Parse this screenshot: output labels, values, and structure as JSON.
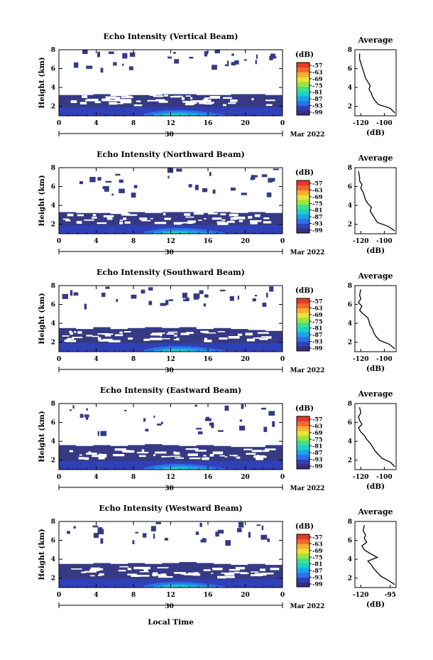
{
  "figure": {
    "xlabel": "Local Time",
    "date_label": "Mar 2022",
    "day_label": "30"
  },
  "colorbar": {
    "unit_label": "(dB)",
    "ticks": [
      "-57",
      "-63",
      "-69",
      "-75",
      "-81",
      "-87",
      "-93",
      "-99"
    ],
    "colors": [
      "#3a2d7c",
      "#3040b8",
      "#2f6fe8",
      "#19a6e8",
      "#1ed0c8",
      "#3fe08c",
      "#9ae43e",
      "#e6e43a",
      "#f8b030",
      "#f46a2c",
      "#e43a2a"
    ]
  },
  "panels": [
    {
      "title": "Echo Intensity (Vertical Beam)",
      "ylabel": "Height (km)",
      "avg_title": "Average",
      "avg_xlabel": "(dB)",
      "avg_xticks": [
        "-120",
        "-100"
      ]
    },
    {
      "title": "Echo Intensity (Northward Beam)",
      "ylabel": "Height (km)",
      "avg_title": "Average",
      "avg_xlabel": "(dB)",
      "avg_xticks": [
        "-120",
        "-100"
      ]
    },
    {
      "title": "Echo Intensity (Southward Beam)",
      "ylabel": "Height (km)",
      "avg_title": "Average",
      "avg_xlabel": "(dB)",
      "avg_xticks": [
        "-120",
        "-100"
      ]
    },
    {
      "title": "Echo Intensity (Eastward Beam)",
      "ylabel": "Height (km)",
      "avg_title": "Average",
      "avg_xlabel": "(dB)",
      "avg_xticks": [
        "-120",
        "-100"
      ]
    },
    {
      "title": "Echo Intensity (Westward Beam)",
      "ylabel": "Height (km)",
      "avg_title": "Average",
      "avg_xlabel": "(dB)",
      "avg_xticks": [
        "-120",
        "-95"
      ]
    }
  ],
  "chart_data": [
    {
      "type": "heatmap",
      "title": "Echo Intensity (Vertical Beam)",
      "xlabel": "",
      "ylabel": "Height (km)",
      "xlim": [
        0,
        24
      ],
      "ylim": [
        1,
        8
      ],
      "xticks": [
        "0",
        "4",
        "8",
        "12",
        "16",
        "20",
        "0"
      ],
      "yticks": [
        "2",
        "4",
        "6",
        "8"
      ],
      "zlabel": "(dB)",
      "zlim": [
        -99,
        -57
      ],
      "grid": false,
      "dense_layer_top_km": [
        3.2,
        3.2,
        3.3,
        3.1,
        3.2,
        3.2,
        3.3,
        3.3,
        3.2,
        3.2,
        3.3,
        3.3,
        3.2
      ],
      "scatter_echo_range_km": [
        6.0,
        8.0
      ]
    },
    {
      "type": "line",
      "title": "Average",
      "xlabel": "(dB)",
      "ylabel": "",
      "xlim": [
        -125,
        -90
      ],
      "ylim": [
        1,
        8
      ],
      "xticks": [
        "-120",
        "-100"
      ],
      "yticks": [
        "2",
        "4",
        "6",
        "8"
      ],
      "x": [
        -91,
        -95,
        -105,
        -108,
        -110,
        -111,
        -113,
        -112,
        -114,
        -116,
        -117,
        -118,
        -119,
        -120,
        -121,
        -121
      ],
      "y": [
        1.3,
        1.8,
        2.2,
        2.6,
        3.0,
        3.4,
        3.8,
        4.2,
        4.6,
        5.0,
        5.4,
        5.8,
        6.2,
        6.6,
        7.0,
        7.6
      ]
    },
    {
      "type": "heatmap",
      "title": "Echo Intensity (Northward Beam)",
      "xlabel": "",
      "ylabel": "Height (km)",
      "xlim": [
        0,
        24
      ],
      "ylim": [
        1,
        8
      ],
      "xticks": [
        "0",
        "4",
        "8",
        "12",
        "16",
        "20",
        "0"
      ],
      "yticks": [
        "2",
        "4",
        "6",
        "8"
      ],
      "zlabel": "(dB)",
      "zlim": [
        -99,
        -57
      ],
      "grid": false,
      "dense_layer_top_km": [
        3.3,
        3.2,
        3.2,
        3.1,
        3.3,
        3.2,
        3.3,
        3.3,
        3.2,
        3.3,
        3.2,
        3.3,
        3.2
      ],
      "scatter_echo_range_km": [
        5.0,
        8.0
      ]
    },
    {
      "type": "line",
      "title": "Average",
      "xlabel": "(dB)",
      "ylabel": "",
      "xlim": [
        -125,
        -90
      ],
      "ylim": [
        1,
        8
      ],
      "xticks": [
        "-120",
        "-100"
      ],
      "yticks": [
        "2",
        "4",
        "6",
        "8"
      ],
      "x": [
        -91,
        -97,
        -106,
        -108,
        -110,
        -112,
        -111,
        -114,
        -116,
        -117,
        -118,
        -120,
        -119,
        -121,
        -121,
        -122
      ],
      "y": [
        1.3,
        1.8,
        2.2,
        2.6,
        3.0,
        3.4,
        3.8,
        4.2,
        4.6,
        5.0,
        5.4,
        5.8,
        6.2,
        6.6,
        7.0,
        7.6
      ]
    },
    {
      "type": "heatmap",
      "title": "Echo Intensity (Southward Beam)",
      "xlabel": "",
      "ylabel": "Height (km)",
      "xlim": [
        0,
        24
      ],
      "ylim": [
        1,
        8
      ],
      "xticks": [
        "0",
        "4",
        "8",
        "12",
        "16",
        "20",
        "0"
      ],
      "yticks": [
        "2",
        "4",
        "6",
        "8"
      ],
      "zlabel": "(dB)",
      "zlim": [
        -99,
        -57
      ],
      "grid": false,
      "dense_layer_top_km": [
        3.5,
        3.4,
        3.6,
        3.4,
        3.5,
        3.6,
        3.5,
        3.6,
        3.4,
        3.5,
        3.4,
        3.3,
        3.2
      ],
      "scatter_echo_range_km": [
        6.0,
        8.0
      ]
    },
    {
      "type": "line",
      "title": "Average",
      "xlabel": "(dB)",
      "ylabel": "",
      "xlim": [
        -125,
        -90
      ],
      "ylim": [
        1,
        8
      ],
      "xticks": [
        "-120",
        "-100"
      ],
      "yticks": [
        "2",
        "4",
        "6",
        "8"
      ],
      "x": [
        -91,
        -96,
        -104,
        -107,
        -109,
        -110,
        -112,
        -113,
        -114,
        -118,
        -121,
        -119,
        -122,
        -120,
        -121,
        -120
      ],
      "y": [
        1.3,
        1.8,
        2.2,
        2.6,
        3.0,
        3.4,
        3.8,
        4.2,
        4.6,
        5.0,
        5.4,
        5.8,
        6.2,
        6.6,
        7.0,
        7.6
      ]
    },
    {
      "type": "heatmap",
      "title": "Echo Intensity (Eastward Beam)",
      "xlabel": "",
      "ylabel": "Height (km)",
      "xlim": [
        0,
        24
      ],
      "ylim": [
        1,
        8
      ],
      "xticks": [
        "0",
        "4",
        "8",
        "12",
        "16",
        "20",
        "0"
      ],
      "yticks": [
        "2",
        "4",
        "6",
        "8"
      ],
      "zlabel": "(dB)",
      "zlim": [
        -99,
        -57
      ],
      "grid": false,
      "dense_layer_top_km": [
        3.6,
        3.5,
        3.6,
        3.5,
        3.6,
        3.7,
        3.6,
        3.5,
        3.6,
        3.5,
        3.4,
        3.4,
        3.6
      ],
      "scatter_echo_range_km": [
        5.0,
        8.0
      ]
    },
    {
      "type": "line",
      "title": "Average",
      "xlabel": "(dB)",
      "ylabel": "",
      "xlim": [
        -125,
        -90
      ],
      "ylim": [
        1,
        8
      ],
      "xticks": [
        "-120",
        "-100"
      ],
      "yticks": [
        "2",
        "4",
        "6",
        "8"
      ],
      "x": [
        -91,
        -95,
        -102,
        -105,
        -108,
        -110,
        -112,
        -115,
        -117,
        -120,
        -122,
        -119,
        -121,
        -122,
        -120,
        -121
      ],
      "y": [
        1.3,
        1.8,
        2.2,
        2.6,
        3.0,
        3.4,
        3.8,
        4.2,
        4.6,
        5.0,
        5.4,
        5.8,
        6.2,
        6.6,
        7.0,
        7.6
      ]
    },
    {
      "type": "heatmap",
      "title": "Echo Intensity (Westward Beam)",
      "xlabel": "Local Time",
      "ylabel": "Height (km)",
      "xlim": [
        0,
        24
      ],
      "ylim": [
        1,
        8
      ],
      "xticks": [
        "0",
        "4",
        "8",
        "12",
        "16",
        "20",
        "0"
      ],
      "yticks": [
        "2",
        "4",
        "6",
        "8"
      ],
      "zlabel": "(dB)",
      "zlim": [
        -99,
        -57
      ],
      "grid": false,
      "dense_layer_top_km": [
        3.5,
        3.5,
        3.6,
        3.5,
        3.6,
        3.5,
        3.6,
        3.7,
        3.6,
        3.5,
        3.4,
        3.5,
        3.4
      ],
      "scatter_echo_range_km": [
        6.0,
        8.0
      ]
    },
    {
      "type": "line",
      "title": "Average",
      "xlabel": "(dB)",
      "ylabel": "",
      "xlim": [
        -125,
        -90
      ],
      "ylim": [
        1,
        8
      ],
      "xticks": [
        "-120",
        "-95"
      ],
      "yticks": [
        "2",
        "4",
        "6",
        "8"
      ],
      "x": [
        -91,
        -97,
        -103,
        -106,
        -109,
        -111,
        -114,
        -106,
        -112,
        -117,
        -119,
        -115,
        -117,
        -116,
        -118,
        -117
      ],
      "y": [
        1.3,
        1.8,
        2.2,
        2.6,
        3.0,
        3.4,
        3.8,
        4.2,
        4.6,
        5.0,
        5.4,
        5.8,
        6.2,
        6.6,
        7.0,
        7.6
      ]
    }
  ]
}
